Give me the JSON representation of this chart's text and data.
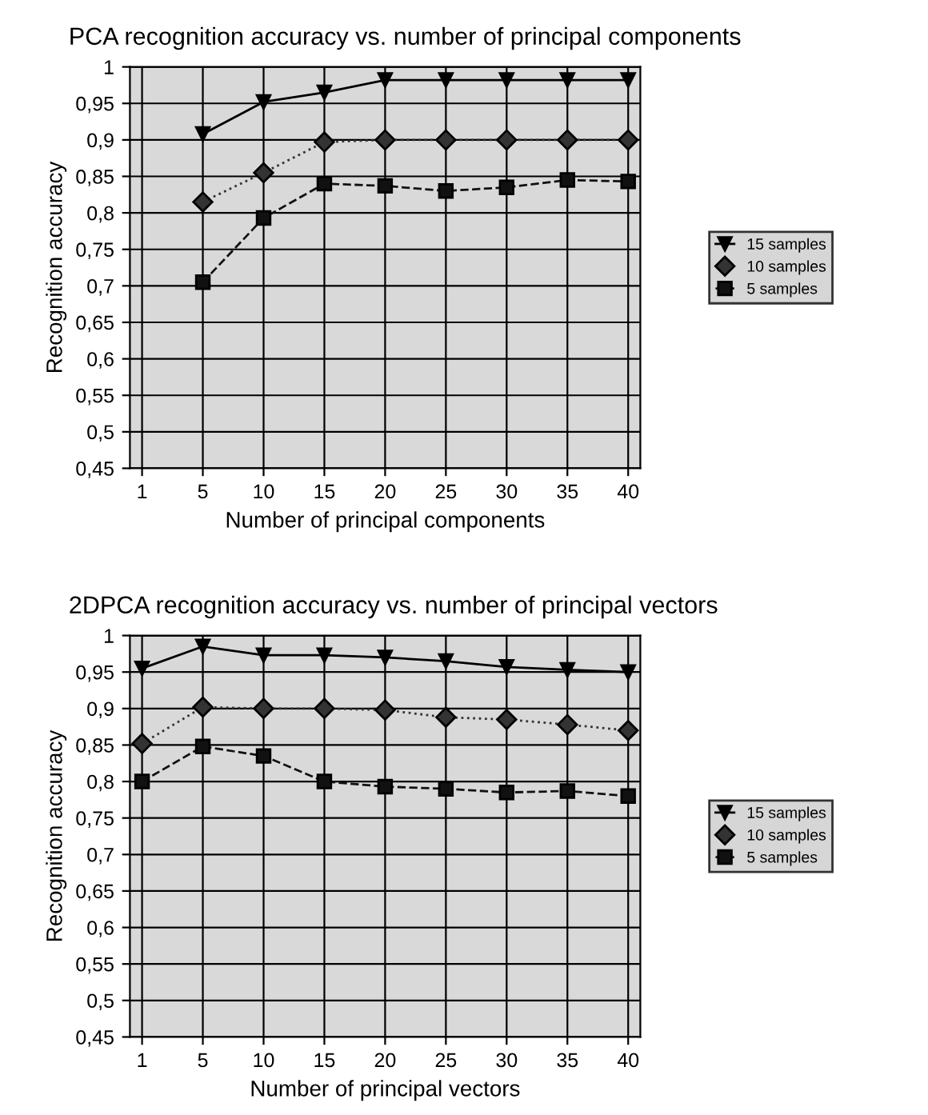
{
  "chart_data": [
    {
      "type": "line",
      "title": "PCA recognition accuracy vs. number of principal components",
      "xlabel": "Number of principal components",
      "ylabel": "Recognition accuracy",
      "categories": [
        "1",
        "5",
        "10",
        "15",
        "20",
        "25",
        "30",
        "35",
        "40"
      ],
      "series": [
        {
          "name": "15 samples",
          "color": "#000000",
          "marker": "triangle",
          "line_style": "solid",
          "values": [
            null,
            0.908,
            0.952,
            0.965,
            0.982,
            0.982,
            0.982,
            0.982,
            0.982
          ]
        },
        {
          "name": "10 samples",
          "color": "#333333",
          "marker": "diamond",
          "line_style": "dotted",
          "values": [
            null,
            0.815,
            0.855,
            0.897,
            0.9,
            0.9,
            0.9,
            0.9,
            0.9
          ]
        },
        {
          "name": "5 samples",
          "color": "#111111",
          "marker": "square",
          "line_style": "dashed",
          "values": [
            null,
            0.705,
            0.793,
            0.84,
            0.837,
            0.83,
            0.835,
            0.845,
            0.843
          ]
        }
      ],
      "ylim": [
        0.45,
        1
      ],
      "yticks": [
        {
          "value": 0.45,
          "label": "0,45"
        },
        {
          "value": 0.5,
          "label": "0,5"
        },
        {
          "value": 0.55,
          "label": "0,55"
        },
        {
          "value": 0.6,
          "label": "0,6"
        },
        {
          "value": 0.65,
          "label": "0,65"
        },
        {
          "value": 0.7,
          "label": "0,7"
        },
        {
          "value": 0.75,
          "label": "0,75"
        },
        {
          "value": 0.8,
          "label": "0,8"
        },
        {
          "value": 0.85,
          "label": "0,85"
        },
        {
          "value": 0.9,
          "label": "0,9"
        },
        {
          "value": 0.95,
          "label": "0,95"
        },
        1
      ],
      "grid": true,
      "legend": "right"
    },
    {
      "type": "line",
      "title": "2DPCA recognition accuracy vs. number of principal vectors",
      "xlabel": "Number of principal vectors",
      "ylabel": "Recognition accuracy",
      "categories": [
        "1",
        "5",
        "10",
        "15",
        "20",
        "25",
        "30",
        "35",
        "40"
      ],
      "series": [
        {
          "name": "15 samples",
          "color": "#000000",
          "marker": "triangle",
          "line_style": "solid",
          "values": [
            0.955,
            0.985,
            0.973,
            0.973,
            0.97,
            0.965,
            0.957,
            0.953,
            0.95
          ]
        },
        {
          "name": "10 samples",
          "color": "#333333",
          "marker": "diamond",
          "line_style": "dotted",
          "values": [
            0.852,
            0.902,
            0.9,
            0.9,
            0.898,
            0.888,
            0.885,
            0.878,
            0.87
          ]
        },
        {
          "name": "5 samples",
          "color": "#111111",
          "marker": "square",
          "line_style": "dashed",
          "values": [
            0.8,
            0.848,
            0.835,
            0.8,
            0.793,
            0.79,
            0.785,
            0.787,
            0.78
          ]
        }
      ],
      "ylim": [
        0.45,
        1
      ],
      "yticks": [
        {
          "value": 0.45,
          "label": "0,45"
        },
        {
          "value": 0.5,
          "label": "0,5"
        },
        {
          "value": 0.55,
          "label": "0,55"
        },
        {
          "value": 0.6,
          "label": "0,6"
        },
        {
          "value": 0.65,
          "label": "0,65"
        },
        {
          "value": 0.7,
          "label": "0,7"
        },
        {
          "value": 0.75,
          "label": "0,75"
        },
        {
          "value": 0.8,
          "label": "0,8"
        },
        {
          "value": 0.85,
          "label": "0,85"
        },
        {
          "value": 0.9,
          "label": "0,9"
        },
        {
          "value": 0.95,
          "label": "0,95"
        },
        1
      ],
      "grid": true,
      "legend": "right"
    }
  ]
}
